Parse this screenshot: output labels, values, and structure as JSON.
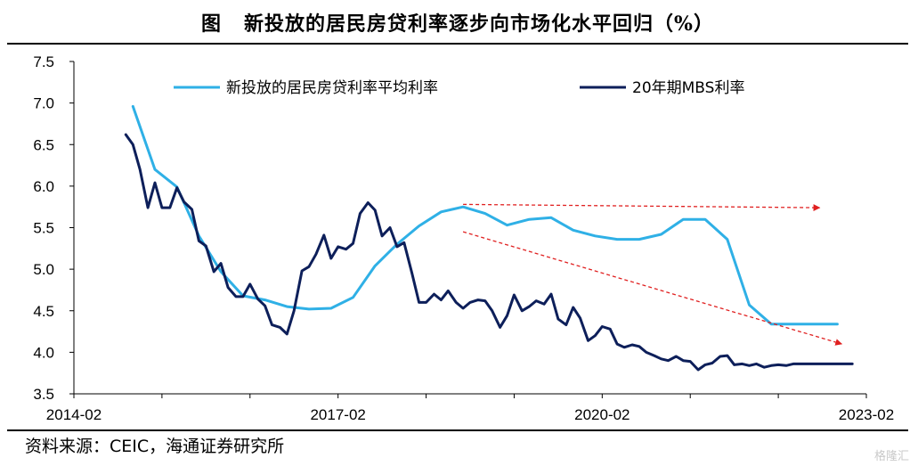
{
  "header": {
    "fig_label": "图",
    "title": "新投放的居民房贷利率逐步向市场化水平回归（%）"
  },
  "footer": {
    "source": "资料来源：CEIC，海通证券研究所",
    "watermark": "格隆汇"
  },
  "colors": {
    "series_light": "#2fb0e6",
    "series_dark": "#0d1f5a",
    "arrow": "#e02020",
    "axis": "#000000"
  },
  "chart_data": {
    "type": "line",
    "title": "新投放的居民房贷利率逐步向市场化水平回归（%）",
    "xlabel": "",
    "ylabel": "",
    "x_ticks": [
      "2014-02",
      "2017-02",
      "2020-02",
      "2023-02"
    ],
    "y_ticks": [
      "3.5",
      "4.0",
      "4.5",
      "5.0",
      "5.5",
      "6.0",
      "6.5",
      "7.0",
      "7.5"
    ],
    "xlim": [
      2014.08,
      2023.08
    ],
    "ylim": [
      3.5,
      7.5
    ],
    "grid": false,
    "legend_position": "top",
    "series": [
      {
        "name": "新投放的居民房贷利率平均利率",
        "color": "#2fb0e6",
        "x": [
          2014.75,
          2015.0,
          2015.25,
          2015.5,
          2015.75,
          2016.0,
          2016.25,
          2016.5,
          2016.75,
          2017.0,
          2017.25,
          2017.5,
          2017.75,
          2018.0,
          2018.25,
          2018.5,
          2018.75,
          2019.0,
          2019.25,
          2019.5,
          2019.75,
          2020.0,
          2020.25,
          2020.5,
          2020.75,
          2021.0,
          2021.25,
          2021.5,
          2021.75,
          2022.0,
          2022.25,
          2022.5,
          2022.75
        ],
        "y": [
          6.96,
          6.2,
          5.99,
          5.4,
          4.97,
          4.68,
          4.63,
          4.55,
          4.52,
          4.53,
          4.66,
          5.04,
          5.3,
          5.52,
          5.69,
          5.75,
          5.67,
          5.53,
          5.6,
          5.62,
          5.47,
          5.4,
          5.36,
          5.36,
          5.42,
          5.6,
          5.6,
          5.36,
          4.57,
          4.34,
          4.34,
          4.34,
          4.34
        ]
      },
      {
        "name": "20年期MBS利率",
        "color": "#0d1f5a",
        "x": [
          2014.67,
          2014.75,
          2014.83,
          2014.92,
          2015.0,
          2015.08,
          2015.17,
          2015.25,
          2015.33,
          2015.42,
          2015.5,
          2015.58,
          2015.67,
          2015.75,
          2015.83,
          2015.92,
          2016.0,
          2016.08,
          2016.17,
          2016.25,
          2016.33,
          2016.42,
          2016.5,
          2016.58,
          2016.67,
          2016.75,
          2016.83,
          2016.92,
          2017.0,
          2017.08,
          2017.17,
          2017.25,
          2017.33,
          2017.42,
          2017.5,
          2017.58,
          2017.67,
          2017.75,
          2017.83,
          2017.92,
          2018.0,
          2018.08,
          2018.17,
          2018.25,
          2018.33,
          2018.42,
          2018.5,
          2018.58,
          2018.67,
          2018.75,
          2018.83,
          2018.92,
          2019.0,
          2019.08,
          2019.17,
          2019.25,
          2019.33,
          2019.42,
          2019.5,
          2019.58,
          2019.67,
          2019.75,
          2019.83,
          2019.92,
          2020.0,
          2020.08,
          2020.17,
          2020.25,
          2020.33,
          2020.42,
          2020.5,
          2020.58,
          2020.67,
          2020.75,
          2020.83,
          2020.92,
          2021.0,
          2021.08,
          2021.17,
          2021.25,
          2021.33,
          2021.42,
          2021.5,
          2021.58,
          2021.67,
          2021.75,
          2021.83,
          2021.92,
          2022.0,
          2022.08,
          2022.17,
          2022.25,
          2022.33,
          2022.42,
          2022.5,
          2022.58,
          2022.67,
          2022.75,
          2022.83,
          2022.92
        ],
        "y": [
          6.62,
          6.5,
          6.2,
          5.74,
          6.04,
          5.74,
          5.74,
          5.98,
          5.81,
          5.72,
          5.34,
          5.28,
          4.97,
          5.07,
          4.78,
          4.67,
          4.67,
          4.82,
          4.64,
          4.56,
          4.33,
          4.3,
          4.22,
          4.5,
          4.98,
          5.03,
          5.18,
          5.41,
          5.13,
          5.27,
          5.24,
          5.31,
          5.67,
          5.8,
          5.71,
          5.4,
          5.5,
          5.27,
          5.32,
          4.95,
          4.6,
          4.6,
          4.7,
          4.63,
          4.74,
          4.6,
          4.53,
          4.6,
          4.63,
          4.62,
          4.5,
          4.3,
          4.44,
          4.69,
          4.5,
          4.55,
          4.62,
          4.58,
          4.7,
          4.4,
          4.33,
          4.54,
          4.41,
          4.14,
          4.2,
          4.31,
          4.28,
          4.1,
          4.06,
          4.09,
          4.07,
          4.0,
          3.96,
          3.92,
          3.9,
          3.95,
          3.9,
          3.89,
          3.79,
          3.85,
          3.87,
          3.95,
          3.96,
          3.85,
          3.86,
          3.84,
          3.86,
          3.82,
          3.84,
          3.85,
          3.84,
          3.86,
          3.86,
          3.86,
          3.86,
          3.86,
          3.86,
          3.86,
          3.86,
          3.86
        ]
      }
    ],
    "annotations": [
      {
        "type": "arrow",
        "from": [
          2018.5,
          5.78
        ],
        "to": [
          2022.55,
          5.74
        ],
        "style": "dashed"
      },
      {
        "type": "arrow",
        "from": [
          2018.5,
          5.45
        ],
        "to": [
          2022.8,
          4.1
        ],
        "style": "dashed"
      }
    ]
  }
}
